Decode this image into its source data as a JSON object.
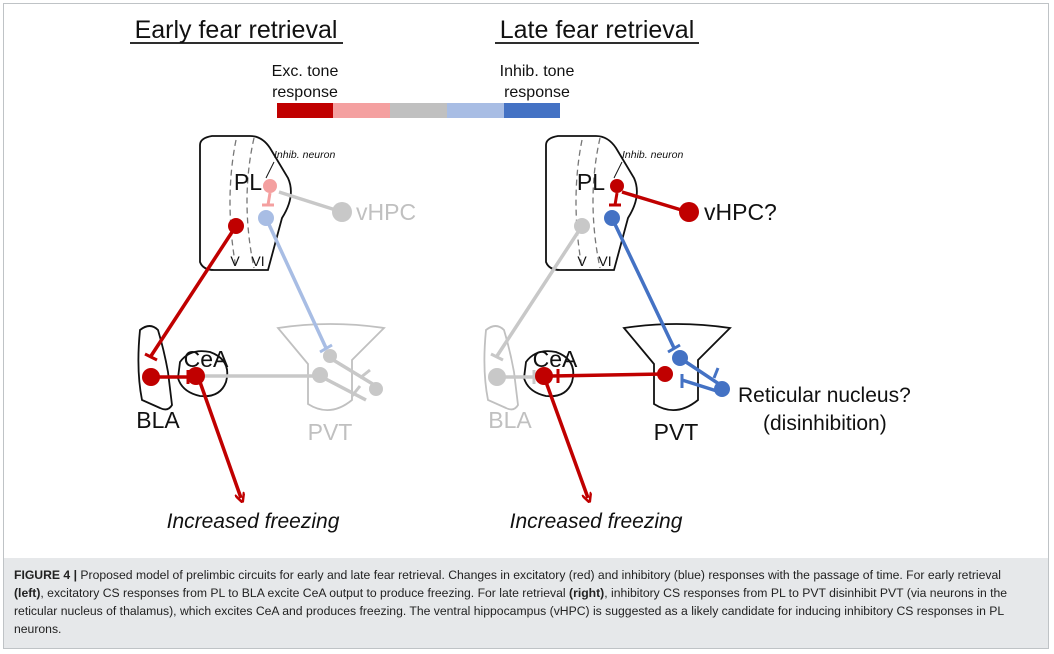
{
  "panels": {
    "left_title": "Early fear retrieval",
    "right_title": "Late fear retrieval"
  },
  "scale": {
    "exc_label_line1": "Exc. tone",
    "exc_label_line2": "response",
    "inh_label_line1": "Inhib. tone",
    "inh_label_line2": "response",
    "colors": [
      "#c00000",
      "#f4a0a0",
      "#c0c0c0",
      "#a8bde4",
      "#4472c4"
    ]
  },
  "left": {
    "inhib_neuron": "Inhib. neuron",
    "pl": "PL",
    "layer_v": "V",
    "layer_vi": "VI",
    "vhpc": "vHPC",
    "cea": "CeA",
    "bla": "BLA",
    "pvt": "PVT",
    "outcome": "Increased freezing"
  },
  "right": {
    "inhib_neuron": "Inhib. neuron",
    "pl": "PL",
    "layer_v": "V",
    "layer_vi": "VI",
    "vhpc": "vHPC?",
    "cea": "CeA",
    "bla": "BLA",
    "pvt": "PVT",
    "reticular_line1": "Reticular nucleus?",
    "reticular_line2": "(disinhibition)",
    "outcome": "Increased freezing"
  },
  "caption": {
    "label": "FIGURE 4 |",
    "t1": " Proposed model of prelimbic circuits for early and late fear retrieval. Changes in excitatory (red) and inhibitory (blue) responses with the passage of time. For early retrieval ",
    "b1": "(left)",
    "t2": ", excitatory CS responses from PL to BLA excite CeA output to produce freezing. For late retrieval ",
    "b2": "(right)",
    "t3": ", inhibitory CS responses from PL to PVT disinhibit PVT (via neurons in the reticular nucleus of thalamus), which excites CeA and produces freezing. The ventral hippocampus (vHPC) is suggested as a likely candidate for inducing inhibitory CS responses in PL neurons."
  }
}
